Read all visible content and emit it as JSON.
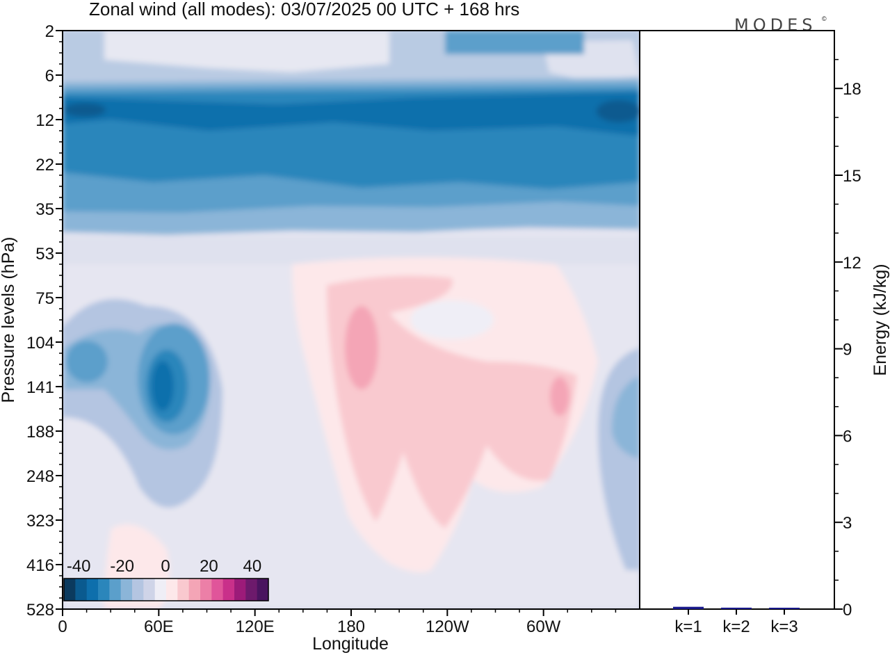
{
  "chart_data": [
    {
      "type": "heatmap",
      "title": "Zonal wind (all modes):  03/07/2025  00 UTC  + 168 hrs",
      "xlabel": "Longitude",
      "ylabel": "Pressure levels (hPa)",
      "x_ticks": [
        "0",
        "60E",
        "120E",
        "180",
        "120W",
        "60W"
      ],
      "x_tick_degrees": [
        0,
        60,
        120,
        180,
        240,
        300
      ],
      "xlim_degrees": [
        0,
        360
      ],
      "y_ticks": [
        "2",
        "6",
        "12",
        "22",
        "35",
        "53",
        "75",
        "104",
        "141",
        "188",
        "248",
        "323",
        "416",
        "528"
      ],
      "colorbar": {
        "labels": [
          "-40",
          "-20",
          "0",
          "20",
          "40"
        ],
        "levels": [
          -40,
          -35,
          -30,
          -25,
          -20,
          -15,
          -10,
          -5,
          0,
          5,
          10,
          15,
          20,
          25,
          30,
          35,
          40
        ],
        "colors": [
          "#0b3a5e",
          "#0a5a8f",
          "#0e6fac",
          "#2b86bb",
          "#5b9fcb",
          "#8bb5d8",
          "#b4c5e1",
          "#cfd4e8",
          "#efeef6",
          "#fde8ea",
          "#f9c9cf",
          "#f4a5b6",
          "#ec7fa7",
          "#e0559a",
          "#c9308a",
          "#9c1b79",
          "#6d1a6c",
          "#4a145f"
        ]
      },
      "regions": [
        {
          "name": "stratospheric easterly jet",
          "levels_hPa": [
            8,
            30
          ],
          "value_ms": -30
        },
        {
          "name": "upper-stratosphere easterlies",
          "levels_hPa": [
            2,
            8
          ],
          "value_ms": -15
        },
        {
          "name": "easterly core near 60E",
          "levels_hPa": [
            104,
            188
          ],
          "lon": 60,
          "value_ms": -35
        },
        {
          "name": "weak westerlies near dateline",
          "levels_hPa": [
            75,
            323
          ],
          "lon": 185,
          "value_ms": 10
        },
        {
          "name": "westerly patch near 70W",
          "levels_hPa": [
            120,
            200
          ],
          "lon": 290,
          "value_ms": 10
        }
      ]
    },
    {
      "type": "bar",
      "ylabel": "Energy (kJ/kg)",
      "ylim": [
        0,
        20
      ],
      "y_ticks": [
        "0",
        "3",
        "6",
        "9",
        "12",
        "15",
        "18"
      ],
      "categories": [
        "k=1",
        "k=2",
        "k=3"
      ],
      "values": [
        0.08,
        0.05,
        0.04
      ],
      "bar_color": "#1a1a8c"
    }
  ],
  "logo": "MODES",
  "logo_mark": "©"
}
